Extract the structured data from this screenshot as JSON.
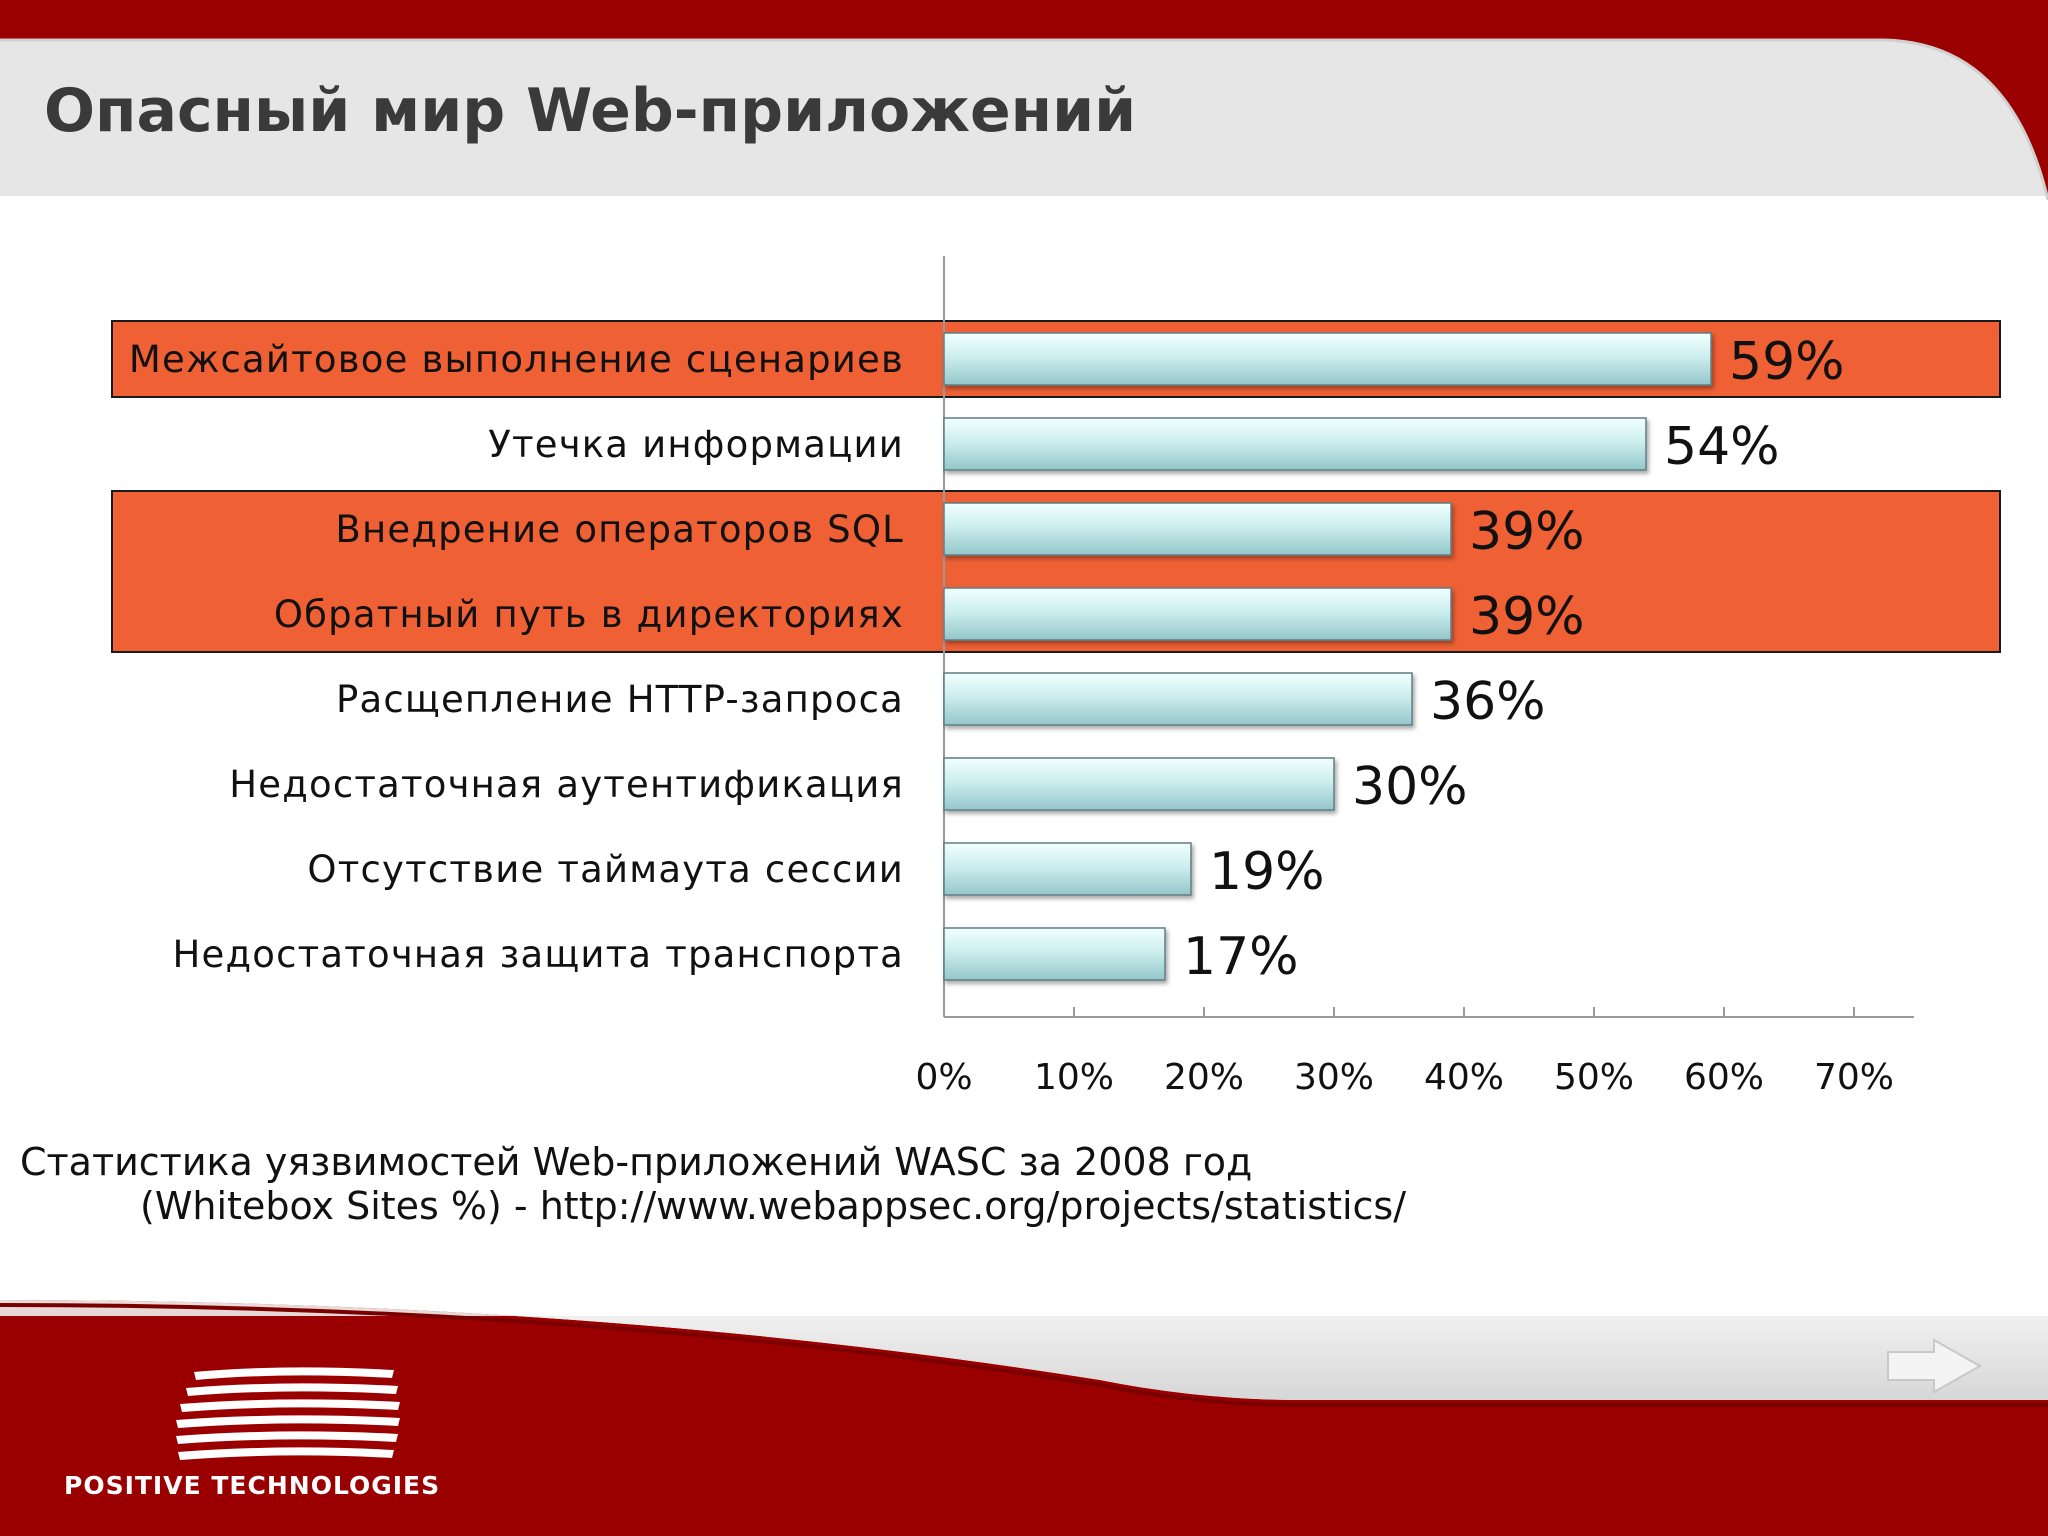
{
  "slide": {
    "title": "Опасный мир Web-приложений",
    "caption_line1": "Статистика уязвимостей Web-приложений WASC за 2008 год",
    "caption_line2": "(Whitebox Sites %) - http://www.webappsec.org/projects/statistics/",
    "brand": "POSITIVE TECHNOLOGIES"
  },
  "colors": {
    "header_red": "#9b0000",
    "highlight": "#ef6035",
    "bar_light": "#e6fafa",
    "bar_dark": "#9cd0d3",
    "header_grey": "#e6e6e6"
  },
  "icons": {
    "next": "arrow-right-icon",
    "logo": "positive-technologies-logo"
  },
  "chart_data": {
    "type": "bar",
    "orientation": "horizontal",
    "categories": [
      "Межсайтовое выполнение сценариев",
      "Утечка информации",
      "Внедрение операторов SQL",
      "Обратный путь в директориях",
      "Расщепление HTTP-запроса",
      "Недостаточная аутентификация",
      "Отсутствие таймаута сессии",
      "Недостаточная защита транспорта"
    ],
    "values": [
      59,
      54,
      39,
      39,
      36,
      30,
      19,
      17
    ],
    "value_labels": [
      "59%",
      "54%",
      "39%",
      "39%",
      "36%",
      "30%",
      "19%",
      "17%"
    ],
    "highlighted_groups": [
      [
        0
      ],
      [
        2,
        3
      ]
    ],
    "xlim": [
      0,
      70
    ],
    "xticks": [
      0,
      10,
      20,
      30,
      40,
      50,
      60,
      70
    ],
    "xtick_labels": [
      "0%",
      "10%",
      "20%",
      "30%",
      "40%",
      "50%",
      "60%",
      "70%"
    ],
    "grid": false,
    "legend": "none"
  }
}
